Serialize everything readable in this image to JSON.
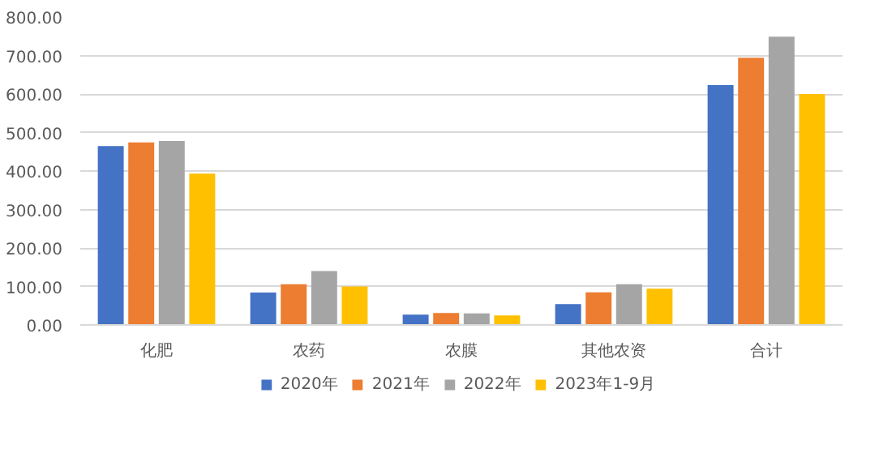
{
  "chart_data": {
    "type": "bar",
    "categories": [
      "化肥",
      "农药",
      "农膜",
      "其他农资",
      "合计"
    ],
    "series": [
      {
        "name": "2020年",
        "color": "#4472c4",
        "values": [
          465,
          84,
          27,
          54,
          623
        ]
      },
      {
        "name": "2021年",
        "color": "#ed7d31",
        "values": [
          474,
          106,
          31,
          85,
          694
        ]
      },
      {
        "name": "2022年",
        "color": "#a5a5a5",
        "values": [
          478,
          140,
          30,
          106,
          749
        ]
      },
      {
        "name": "2023年1-9月",
        "color": "#ffc000",
        "values": [
          393,
          100,
          25,
          94,
          600
        ]
      }
    ],
    "ylim": [
      0,
      800
    ],
    "yticks": [
      {
        "value": 0,
        "label": "0.00"
      },
      {
        "value": 100,
        "label": "100.00"
      },
      {
        "value": 200,
        "label": "200.00"
      },
      {
        "value": 300,
        "label": "300.00"
      },
      {
        "value": 400,
        "label": "400.00"
      },
      {
        "value": 500,
        "label": "500.00"
      },
      {
        "value": 600,
        "label": "600.00"
      },
      {
        "value": 700,
        "label": "700.00"
      },
      {
        "value": 800,
        "label": "800.00"
      }
    ],
    "grid": "y",
    "legend": "bottom"
  }
}
